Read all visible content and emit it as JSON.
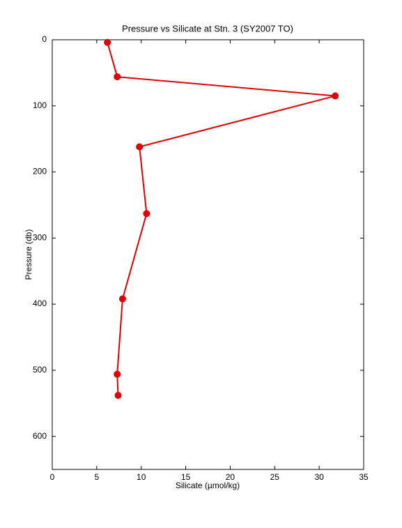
{
  "chart_data": {
    "type": "line",
    "title": "Pressure vs Silicate at Stn. 3 (SY2007 TO)",
    "x_label": "Silicate (µmol/kg)",
    "y_label": "Pressure (db)",
    "x": [
      6.2,
      7.3,
      31.8,
      9.8,
      10.6,
      7.9,
      7.3,
      7.4
    ],
    "series": [
      {
        "name": "Silicate",
        "color": "#e00000",
        "values": [
          4,
          56,
          85,
          162,
          263,
          392,
          506,
          538
        ]
      }
    ],
    "xlim": [
      0,
      35
    ],
    "xticks": [
      0,
      5,
      10,
      15,
      20,
      25,
      30,
      35
    ],
    "ylim": [
      0,
      650
    ],
    "yticks": [
      0,
      100,
      200,
      300,
      400,
      500,
      600
    ],
    "y_inverted": true,
    "grid": false,
    "markers": true
  }
}
